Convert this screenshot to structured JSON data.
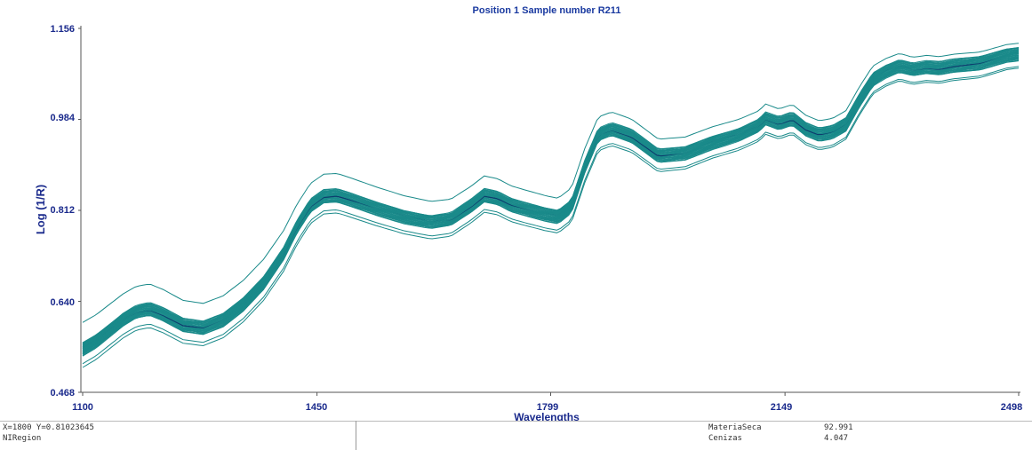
{
  "chart_data": {
    "type": "line",
    "title": "Position 1  Sample number R211",
    "xlabel": "Wavelengths",
    "ylabel": "Log (1/R)",
    "xlim": [
      1100,
      2498
    ],
    "ylim": [
      0.468,
      1.156
    ],
    "x_ticks": [
      "1100",
      "1450",
      "1799",
      "2149",
      "2498"
    ],
    "y_ticks": [
      "1.156",
      "0.984",
      "0.812",
      "0.640",
      "0.468"
    ],
    "grid": false,
    "series_color": "#1a8a8a",
    "series_count": 45,
    "central_spectrum": {
      "x": [
        1100,
        1120,
        1140,
        1160,
        1180,
        1200,
        1220,
        1250,
        1280,
        1310,
        1340,
        1370,
        1400,
        1420,
        1440,
        1460,
        1480,
        1500,
        1540,
        1580,
        1620,
        1650,
        1680,
        1700,
        1720,
        1740,
        1760,
        1790,
        1810,
        1830,
        1850,
        1870,
        1890,
        1920,
        1960,
        2000,
        2040,
        2080,
        2110,
        2120,
        2140,
        2160,
        2180,
        2200,
        2220,
        2240,
        2260,
        2280,
        2300,
        2320,
        2340,
        2360,
        2380,
        2400,
        2440,
        2480,
        2498
      ],
      "y": [
        0.55,
        0.565,
        0.585,
        0.605,
        0.62,
        0.625,
        0.615,
        0.595,
        0.59,
        0.605,
        0.635,
        0.675,
        0.73,
        0.78,
        0.82,
        0.838,
        0.84,
        0.832,
        0.815,
        0.8,
        0.79,
        0.795,
        0.82,
        0.84,
        0.835,
        0.822,
        0.815,
        0.805,
        0.8,
        0.82,
        0.895,
        0.955,
        0.965,
        0.952,
        0.915,
        0.92,
        0.94,
        0.955,
        0.972,
        0.985,
        0.976,
        0.985,
        0.965,
        0.955,
        0.96,
        0.975,
        1.02,
        1.06,
        1.075,
        1.085,
        1.078,
        1.082,
        1.08,
        1.085,
        1.09,
        1.105,
        1.108
      ]
    }
  },
  "status": {
    "cursor": "X=1800   Y=0.81023645",
    "region": "NIRegion",
    "results": [
      {
        "name": "MateriaSeca",
        "value": "92.991"
      },
      {
        "name": "Cenizas",
        "value": "4.047"
      }
    ]
  }
}
